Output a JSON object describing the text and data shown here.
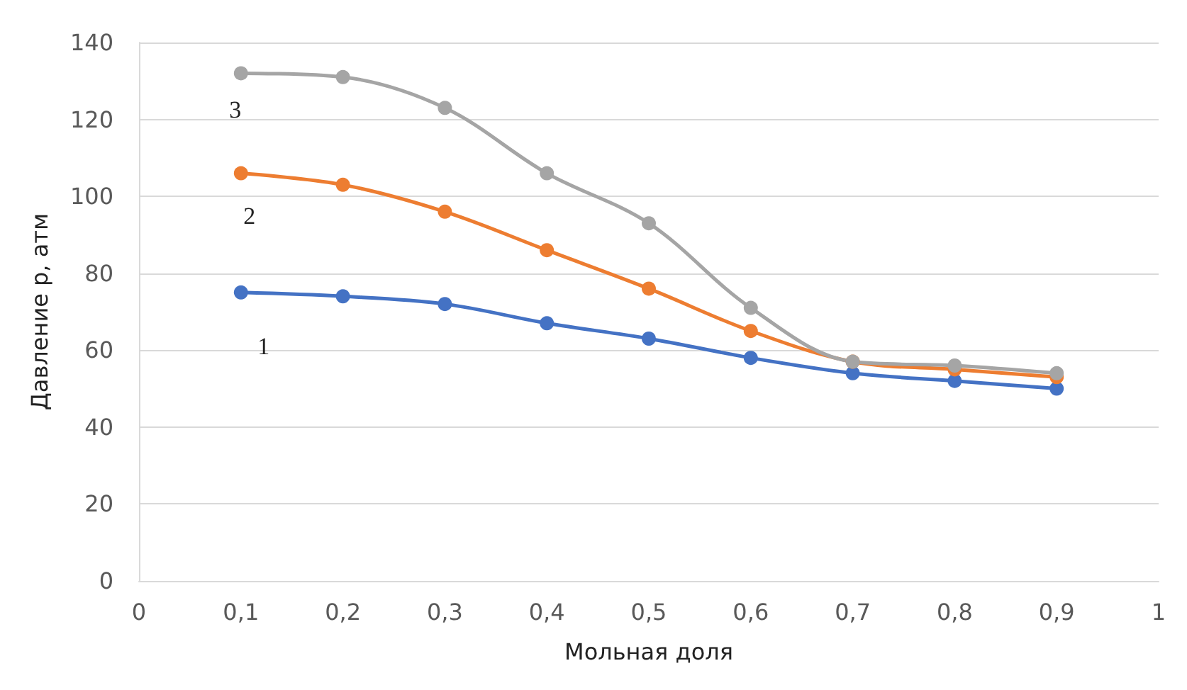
{
  "chart_data": {
    "type": "line",
    "xlabel": "Мольная доля",
    "ylabel": "Давление р, атм",
    "x": [
      0.1,
      0.2,
      0.3,
      0.4,
      0.5,
      0.6,
      0.7,
      0.8,
      0.9
    ],
    "series": [
      {
        "name": "1",
        "color": "#4472c4",
        "values": [
          75,
          74,
          72,
          67,
          63,
          58,
          54,
          52,
          50
        ]
      },
      {
        "name": "2",
        "color": "#ed7d31",
        "values": [
          106,
          103,
          96,
          86,
          76,
          65,
          57,
          55,
          53
        ]
      },
      {
        "name": "3",
        "color": "#a5a5a5",
        "values": [
          132,
          131,
          123,
          106,
          93,
          71,
          57,
          56,
          54
        ]
      }
    ],
    "xlim": [
      0,
      1
    ],
    "ylim": [
      0,
      140
    ],
    "xticks": [
      0,
      {
        "value": 0.1,
        "label": "0,1"
      },
      {
        "value": 0.2,
        "label": "0,2"
      },
      {
        "value": 0.3,
        "label": "0,3"
      },
      {
        "value": 0.4,
        "label": "0,4"
      },
      {
        "value": 0.5,
        "label": "0,5"
      },
      {
        "value": 0.6,
        "label": "0,6"
      },
      {
        "value": 0.7,
        "label": "0,7"
      },
      {
        "value": 0.8,
        "label": "0,8"
      },
      {
        "value": 0.9,
        "label": "0,9"
      },
      1
    ],
    "yticks": [
      0,
      20,
      40,
      60,
      80,
      100,
      120,
      140
    ],
    "grid": "y",
    "marker": "circle",
    "line_style": "solid",
    "legend": false
  }
}
